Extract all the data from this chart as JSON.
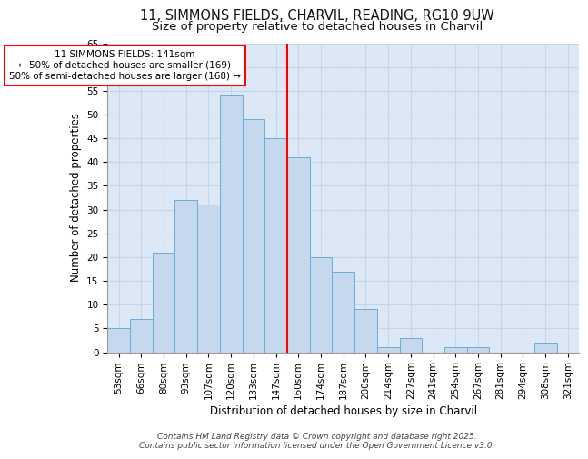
{
  "title_line1": "11, SIMMONS FIELDS, CHARVIL, READING, RG10 9UW",
  "title_line2": "Size of property relative to detached houses in Charvil",
  "xlabel": "Distribution of detached houses by size in Charvil",
  "ylabel": "Number of detached properties",
  "categories": [
    "53sqm",
    "66sqm",
    "80sqm",
    "93sqm",
    "107sqm",
    "120sqm",
    "133sqm",
    "147sqm",
    "160sqm",
    "174sqm",
    "187sqm",
    "200sqm",
    "214sqm",
    "227sqm",
    "241sqm",
    "254sqm",
    "267sqm",
    "281sqm",
    "294sqm",
    "308sqm",
    "321sqm"
  ],
  "values": [
    5,
    7,
    21,
    32,
    31,
    54,
    49,
    45,
    41,
    20,
    17,
    9,
    1,
    3,
    0,
    1,
    1,
    0,
    0,
    2,
    0
  ],
  "bar_color": "#c5d8ed",
  "bar_edge_color": "#6aadd5",
  "vline_x": 7.5,
  "vline_color": "red",
  "annotation_title": "11 SIMMONS FIELDS: 141sqm",
  "annotation_line2": "← 50% of detached houses are smaller (169)",
  "annotation_line3": "50% of semi-detached houses are larger (168) →",
  "annotation_box_color": "white",
  "annotation_box_edge": "red",
  "ylim": [
    0,
    65
  ],
  "yticks": [
    0,
    5,
    10,
    15,
    20,
    25,
    30,
    35,
    40,
    45,
    50,
    55,
    60,
    65
  ],
  "grid_color": "#c8d4e8",
  "background_color": "#dce8f5",
  "footer_line1": "Contains HM Land Registry data © Crown copyright and database right 2025.",
  "footer_line2": "Contains public sector information licensed under the Open Government Licence v3.0.",
  "title_fontsize": 10.5,
  "subtitle_fontsize": 9.5,
  "axis_label_fontsize": 8.5,
  "tick_fontsize": 7.5,
  "annotation_fontsize": 7.5,
  "footer_fontsize": 6.5
}
